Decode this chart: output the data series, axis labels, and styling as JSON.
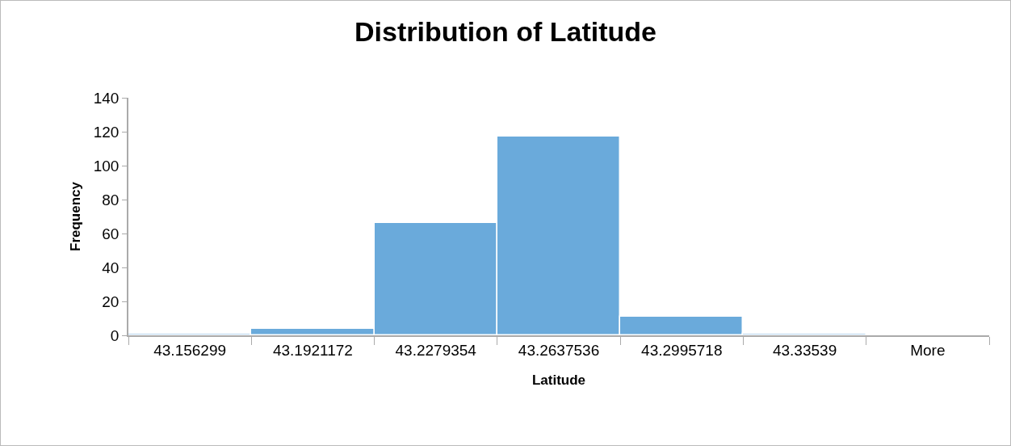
{
  "chart_data": {
    "type": "bar",
    "title": "Distribution of Latitude",
    "xlabel": "Latitude",
    "ylabel": "Frequency",
    "categories": [
      "43.156299",
      "43.1921172",
      "43.2279354",
      "43.2637536",
      "43.2995718",
      "43.33539",
      "More"
    ],
    "values": [
      1,
      4,
      66,
      117,
      11,
      1,
      0
    ],
    "color": "#6aaadb",
    "ylim": [
      0,
      140
    ],
    "yticks": [
      0,
      20,
      40,
      60,
      80,
      100,
      120,
      140
    ],
    "grid": false
  }
}
